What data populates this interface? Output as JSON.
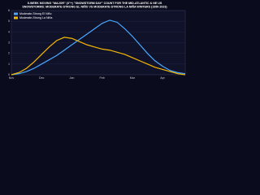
{
  "chart_data": {
    "type": "line",
    "title": "5-WEEK MOVING \"MAJOR\" (3\"+) \"SNOWSTORM DAY\" COUNT FOR THE MID-ATLANTIC & NE US",
    "subtitle": "SNOWSTORMS: MODERATE-STRONG EL NIÑO VS MODERATE-STRONG LA NIÑA WINTERS (1950-2023)",
    "categories": [
      "Nov",
      null,
      null,
      null,
      "Dec",
      null,
      null,
      null,
      "Jan",
      null,
      null,
      null,
      "Feb",
      null,
      null,
      null,
      "Mar",
      null,
      null,
      null,
      "Apr",
      null,
      null,
      null
    ],
    "series": [
      {
        "name": "Moderate-Strong El Niño",
        "color": "#4aa8ff",
        "values": [
          0,
          0.1,
          0.3,
          0.6,
          1.0,
          1.4,
          1.8,
          2.3,
          2.8,
          3.3,
          3.8,
          4.3,
          4.8,
          5.1,
          4.9,
          4.3,
          3.6,
          2.8,
          2.0,
          1.3,
          0.8,
          0.4,
          0.2,
          0.1
        ]
      },
      {
        "name": "Moderate-Strong La Niña",
        "color": "#f5b800",
        "values": [
          0,
          0.2,
          0.6,
          1.2,
          1.9,
          2.6,
          3.2,
          3.5,
          3.4,
          3.1,
          2.8,
          2.6,
          2.4,
          2.3,
          2.1,
          1.9,
          1.6,
          1.3,
          1.0,
          0.7,
          0.5,
          0.3,
          0.1,
          0
        ]
      }
    ],
    "ylim": [
      0,
      6
    ],
    "yticks": [
      0,
      1,
      2,
      3,
      4,
      5,
      6
    ],
    "grid": true,
    "legend": "top-left"
  }
}
